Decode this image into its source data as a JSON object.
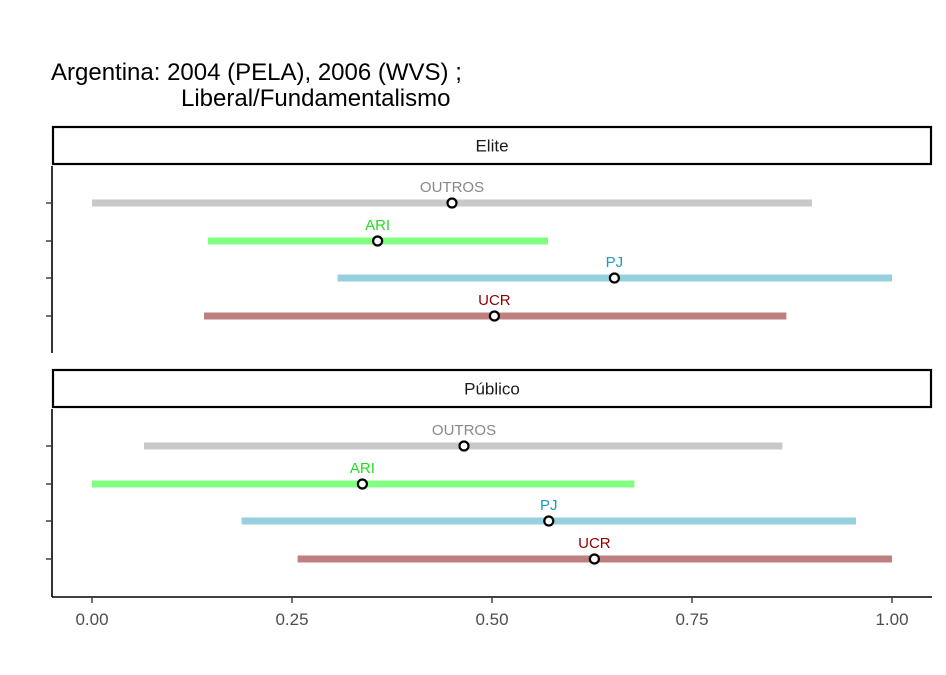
{
  "chart_data": {
    "type": "range-dot",
    "title_lines": [
      "Argentina: 2004 (PELA), 2006 (WVS) ;",
      "Liberal/Fundamentalismo"
    ],
    "xlabel": "",
    "ylabel": "",
    "xlim": [
      -0.05,
      1.05
    ],
    "x_ticks": [
      0,
      0.25,
      0.5,
      0.75,
      1
    ],
    "x_tick_labels": [
      "0.00",
      "0.25",
      "0.50",
      "0.75",
      "1.00"
    ],
    "grid": false,
    "colors": {
      "OUTROS": "#c8c8c8",
      "ARI": "#80ff80",
      "PJ": "#96cfdd",
      "UCR": "#bf7f7f"
    },
    "label_colors": {
      "OUTROS": "#888888",
      "ARI": "#22dd22",
      "PJ": "#1a9bbd",
      "UCR": "#8b0000"
    },
    "panels": [
      {
        "name": "Elite",
        "series": [
          {
            "label": "OUTROS",
            "low": 0.0,
            "high": 0.9,
            "point": 0.45
          },
          {
            "label": "ARI",
            "low": 0.145,
            "high": 0.57,
            "point": 0.357
          },
          {
            "label": "PJ",
            "low": 0.307,
            "high": 1.0,
            "point": 0.653
          },
          {
            "label": "UCR",
            "low": 0.14,
            "high": 0.868,
            "point": 0.503
          }
        ]
      },
      {
        "name": "Público",
        "series": [
          {
            "label": "OUTROS",
            "low": 0.065,
            "high": 0.863,
            "point": 0.465
          },
          {
            "label": "ARI",
            "low": 0.0,
            "high": 0.678,
            "point": 0.338
          },
          {
            "label": "PJ",
            "low": 0.187,
            "high": 0.955,
            "point": 0.571
          },
          {
            "label": "UCR",
            "low": 0.257,
            "high": 1.0,
            "point": 0.628
          }
        ]
      }
    ]
  }
}
